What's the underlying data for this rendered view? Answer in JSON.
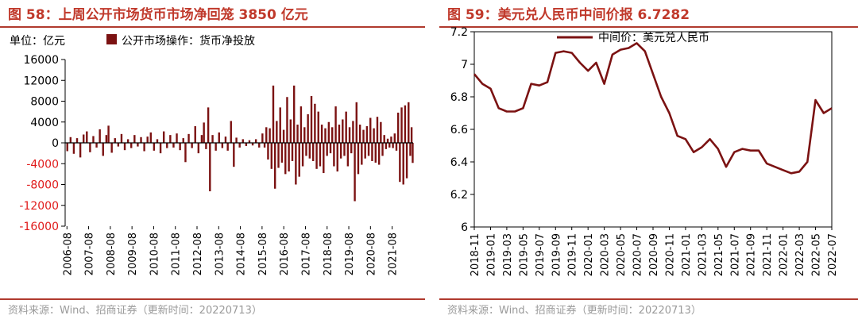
{
  "left": {
    "title": "图 58：上周公开市场货币市场净回笼 3850 亿元",
    "source": "资料来源：Wind、招商证券（更新时间：20220713）"
  },
  "right": {
    "title": "图 59：美元兑人民币中间价报 6.7282",
    "source": "资料来源：Wind、招商证券（更新时间：20220713）"
  },
  "colors": {
    "title": "#c0392b",
    "series": "#7b1212",
    "negative_tick": "#e01b1b",
    "rule": "#b03a2e"
  },
  "chart_data": [
    {
      "type": "bar",
      "unit_label": "单位：亿元",
      "legend": "公开市场操作：货币净投放",
      "series": [
        {
          "name": "公开市场操作：货币净投放"
        }
      ],
      "ylim": [
        -16000,
        16000
      ],
      "yticks": [
        16000,
        12000,
        8000,
        4000,
        0,
        -4000,
        -8000,
        -12000,
        -16000
      ],
      "ytick_labels": [
        "16000",
        "12000",
        "8000",
        "4000",
        "0",
        "-4000",
        "-8000",
        "-12000",
        "-16000"
      ],
      "xticks": [
        "2006-08",
        "2007-08",
        "2008-08",
        "2009-08",
        "2010-08",
        "2011-08",
        "2012-08",
        "2013-08",
        "2014-08",
        "2015-08",
        "2016-08",
        "2017-08",
        "2018-08",
        "2019-08",
        "2020-08",
        "2021-08"
      ],
      "x_range": [
        2006.5,
        2022.55
      ],
      "points": [
        [
          2006.6,
          -1600
        ],
        [
          2006.75,
          1100
        ],
        [
          2006.9,
          -2100
        ],
        [
          2007.05,
          900
        ],
        [
          2007.2,
          -2800
        ],
        [
          2007.35,
          1600
        ],
        [
          2007.5,
          2200
        ],
        [
          2007.65,
          -1800
        ],
        [
          2007.8,
          1300
        ],
        [
          2007.95,
          -900
        ],
        [
          2008.1,
          2600
        ],
        [
          2008.25,
          -2500
        ],
        [
          2008.4,
          1500
        ],
        [
          2008.5,
          3300
        ],
        [
          2008.65,
          -1900
        ],
        [
          2008.8,
          900
        ],
        [
          2008.95,
          -700
        ],
        [
          2009.1,
          1700
        ],
        [
          2009.25,
          -1400
        ],
        [
          2009.4,
          700
        ],
        [
          2009.55,
          -1000
        ],
        [
          2009.7,
          1500
        ],
        [
          2009.85,
          -700
        ],
        [
          2010.0,
          1100
        ],
        [
          2010.15,
          -1600
        ],
        [
          2010.3,
          1200
        ],
        [
          2010.45,
          2000
        ],
        [
          2010.6,
          -1500
        ],
        [
          2010.75,
          700
        ],
        [
          2010.9,
          -2000
        ],
        [
          2011.05,
          2200
        ],
        [
          2011.2,
          -1000
        ],
        [
          2011.35,
          1500
        ],
        [
          2011.5,
          -900
        ],
        [
          2011.65,
          1800
        ],
        [
          2011.8,
          -1400
        ],
        [
          2011.95,
          900
        ],
        [
          2012.05,
          -3700
        ],
        [
          2012.2,
          1700
        ],
        [
          2012.35,
          -1000
        ],
        [
          2012.5,
          3200
        ],
        [
          2012.65,
          -2000
        ],
        [
          2012.8,
          1500
        ],
        [
          2012.9,
          3900
        ],
        [
          2013.0,
          -1200
        ],
        [
          2013.1,
          6800
        ],
        [
          2013.18,
          -9300
        ],
        [
          2013.3,
          1500
        ],
        [
          2013.45,
          -1500
        ],
        [
          2013.6,
          2000
        ],
        [
          2013.75,
          -1000
        ],
        [
          2013.9,
          1200
        ],
        [
          2014.0,
          -1500
        ],
        [
          2014.15,
          4200
        ],
        [
          2014.28,
          -4600
        ],
        [
          2014.4,
          1000
        ],
        [
          2014.55,
          -900
        ],
        [
          2014.7,
          700
        ],
        [
          2014.85,
          -600
        ],
        [
          2015.0,
          500
        ],
        [
          2015.15,
          -500
        ],
        [
          2015.3,
          700
        ],
        [
          2015.45,
          -900
        ],
        [
          2015.6,
          1800
        ],
        [
          2015.7,
          -900
        ],
        [
          2015.78,
          3000
        ],
        [
          2015.86,
          -3200
        ],
        [
          2015.94,
          2800
        ],
        [
          2016.02,
          -5000
        ],
        [
          2016.1,
          11000
        ],
        [
          2016.18,
          -8800
        ],
        [
          2016.26,
          4200
        ],
        [
          2016.34,
          -4800
        ],
        [
          2016.42,
          6800
        ],
        [
          2016.5,
          -3800
        ],
        [
          2016.58,
          2500
        ],
        [
          2016.66,
          -6000
        ],
        [
          2016.74,
          8800
        ],
        [
          2016.82,
          -5500
        ],
        [
          2016.9,
          4500
        ],
        [
          2016.98,
          -3500
        ],
        [
          2017.06,
          11000
        ],
        [
          2017.14,
          -8000
        ],
        [
          2017.22,
          3500
        ],
        [
          2017.3,
          -6500
        ],
        [
          2017.38,
          7000
        ],
        [
          2017.46,
          -4500
        ],
        [
          2017.54,
          3000
        ],
        [
          2017.62,
          -2500
        ],
        [
          2017.7,
          5500
        ],
        [
          2017.78,
          -3000
        ],
        [
          2017.86,
          9000
        ],
        [
          2017.94,
          -3500
        ],
        [
          2018.02,
          7500
        ],
        [
          2018.1,
          -5000
        ],
        [
          2018.18,
          6000
        ],
        [
          2018.26,
          -4500
        ],
        [
          2018.34,
          3500
        ],
        [
          2018.42,
          -5800
        ],
        [
          2018.5,
          2800
        ],
        [
          2018.58,
          -2500
        ],
        [
          2018.66,
          4000
        ],
        [
          2018.74,
          -2000
        ],
        [
          2018.82,
          3000
        ],
        [
          2018.9,
          -4500
        ],
        [
          2018.98,
          7000
        ],
        [
          2019.06,
          -5500
        ],
        [
          2019.14,
          3500
        ],
        [
          2019.22,
          -3000
        ],
        [
          2019.3,
          4500
        ],
        [
          2019.38,
          -2500
        ],
        [
          2019.46,
          6000
        ],
        [
          2019.54,
          -4500
        ],
        [
          2019.62,
          3000
        ],
        [
          2019.7,
          -2000
        ],
        [
          2019.78,
          4200
        ],
        [
          2019.86,
          -11200
        ],
        [
          2019.94,
          7800
        ],
        [
          2020.02,
          -6000
        ],
        [
          2020.1,
          3500
        ],
        [
          2020.18,
          -4200
        ],
        [
          2020.26,
          2500
        ],
        [
          2020.34,
          -3000
        ],
        [
          2020.42,
          3200
        ],
        [
          2020.5,
          -2500
        ],
        [
          2020.58,
          4800
        ],
        [
          2020.66,
          -3500
        ],
        [
          2020.74,
          2800
        ],
        [
          2020.82,
          -3800
        ],
        [
          2020.9,
          5000
        ],
        [
          2020.98,
          -4200
        ],
        [
          2021.06,
          4000
        ],
        [
          2021.14,
          -2500
        ],
        [
          2021.22,
          1500
        ],
        [
          2021.3,
          -1200
        ],
        [
          2021.38,
          800
        ],
        [
          2021.46,
          -900
        ],
        [
          2021.54,
          1200
        ],
        [
          2021.62,
          -1000
        ],
        [
          2021.7,
          1800
        ],
        [
          2021.78,
          -1500
        ],
        [
          2021.86,
          5800
        ],
        [
          2021.94,
          -7500
        ],
        [
          2022.02,
          6800
        ],
        [
          2022.1,
          -8000
        ],
        [
          2022.18,
          7200
        ],
        [
          2022.26,
          -6800
        ],
        [
          2022.34,
          7800
        ],
        [
          2022.42,
          -2500
        ],
        [
          2022.48,
          3000
        ],
        [
          2022.53,
          -3850
        ]
      ]
    },
    {
      "type": "line",
      "legend": "中间价：美元兑人民币",
      "series": [
        {
          "name": "中间价：美元兑人民币"
        }
      ],
      "ylim": [
        6.0,
        7.2
      ],
      "yticks": [
        7.2,
        7.0,
        6.8,
        6.6,
        6.4,
        6.2,
        6.0
      ],
      "ytick_labels": [
        "7.2",
        "7",
        "6.8",
        "6.6",
        "6.4",
        "6.2",
        "6"
      ],
      "xticks": [
        "2018-11",
        "2019-01",
        "2019-03",
        "2019-05",
        "2019-07",
        "2019-09",
        "2019-11",
        "2020-01",
        "2020-03",
        "2020-05",
        "2020-07",
        "2020-09",
        "2020-11",
        "2021-01",
        "2021-03",
        "2021-05",
        "2021-07",
        "2021-09",
        "2021-11",
        "2022-01",
        "2022-03",
        "2022-05",
        "2022-07"
      ],
      "x_range": [
        "2018-11",
        "2022-07"
      ],
      "points": [
        [
          "2018-11",
          6.94
        ],
        [
          "2018-12",
          6.88
        ],
        [
          "2019-01",
          6.85
        ],
        [
          "2019-02",
          6.73
        ],
        [
          "2019-03",
          6.71
        ],
        [
          "2019-04",
          6.71
        ],
        [
          "2019-05",
          6.73
        ],
        [
          "2019-06",
          6.88
        ],
        [
          "2019-07",
          6.87
        ],
        [
          "2019-08",
          6.89
        ],
        [
          "2019-09",
          7.07
        ],
        [
          "2019-10",
          7.08
        ],
        [
          "2019-11",
          7.07
        ],
        [
          "2019-12",
          7.01
        ],
        [
          "2020-01",
          6.96
        ],
        [
          "2020-02",
          7.01
        ],
        [
          "2020-03",
          6.88
        ],
        [
          "2020-04",
          7.06
        ],
        [
          "2020-05",
          7.09
        ],
        [
          "2020-06",
          7.1
        ],
        [
          "2020-07",
          7.13
        ],
        [
          "2020-08",
          7.08
        ],
        [
          "2020-09",
          6.94
        ],
        [
          "2020-10",
          6.8
        ],
        [
          "2020-11",
          6.7
        ],
        [
          "2020-12",
          6.56
        ],
        [
          "2021-01",
          6.54
        ],
        [
          "2021-02",
          6.46
        ],
        [
          "2021-03",
          6.49
        ],
        [
          "2021-04",
          6.54
        ],
        [
          "2021-05",
          6.48
        ],
        [
          "2021-06",
          6.37
        ],
        [
          "2021-07",
          6.46
        ],
        [
          "2021-08",
          6.48
        ],
        [
          "2021-09",
          6.47
        ],
        [
          "2021-10",
          6.47
        ],
        [
          "2021-11",
          6.39
        ],
        [
          "2021-12",
          6.37
        ],
        [
          "2022-01",
          6.35
        ],
        [
          "2022-02",
          6.33
        ],
        [
          "2022-03",
          6.34
        ],
        [
          "2022-04",
          6.4
        ],
        [
          "2022-05",
          6.78
        ],
        [
          "2022-06",
          6.7
        ],
        [
          "2022-07",
          6.73
        ]
      ]
    }
  ]
}
